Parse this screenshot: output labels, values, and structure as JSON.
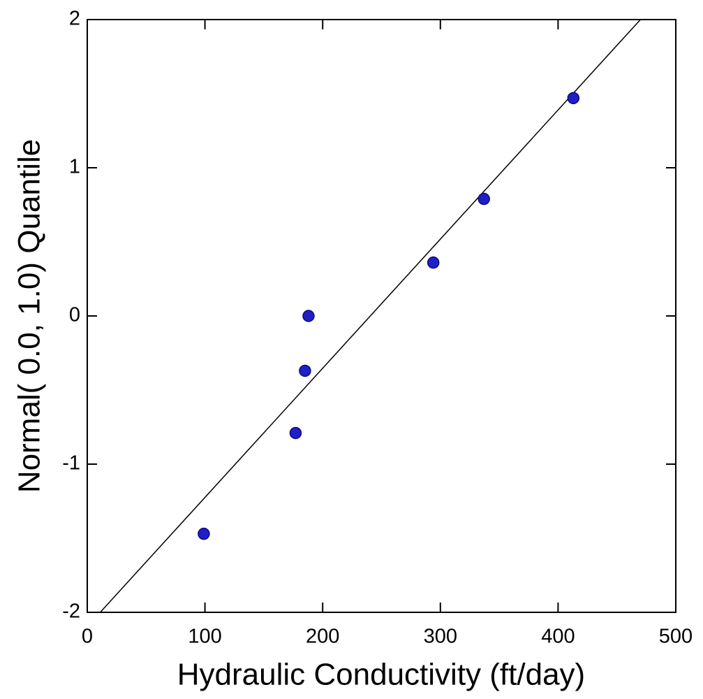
{
  "chart_data": {
    "type": "scatter",
    "x_label": "Hydraulic Conductivity (ft/day)",
    "y_label": "Normal( 0.0, 1.0) Quantile",
    "series": [
      {
        "color": "#1f1fc8",
        "x": [
          99,
          177,
          185,
          188,
          294,
          337,
          413
        ],
        "values": [
          -1.47,
          -0.79,
          -0.37,
          0,
          0.36,
          0.79,
          1.47
        ]
      }
    ],
    "fit_line": {
      "color": "#000000",
      "x": [
        11,
        470
      ],
      "values": [
        -2,
        2
      ]
    },
    "xlim": [
      0,
      500
    ],
    "xticks": [
      0,
      100,
      200,
      300,
      400,
      500
    ],
    "ylim": [
      -2,
      2
    ],
    "yticks": [
      -2,
      -1,
      0,
      1,
      2
    ],
    "grid": false
  }
}
